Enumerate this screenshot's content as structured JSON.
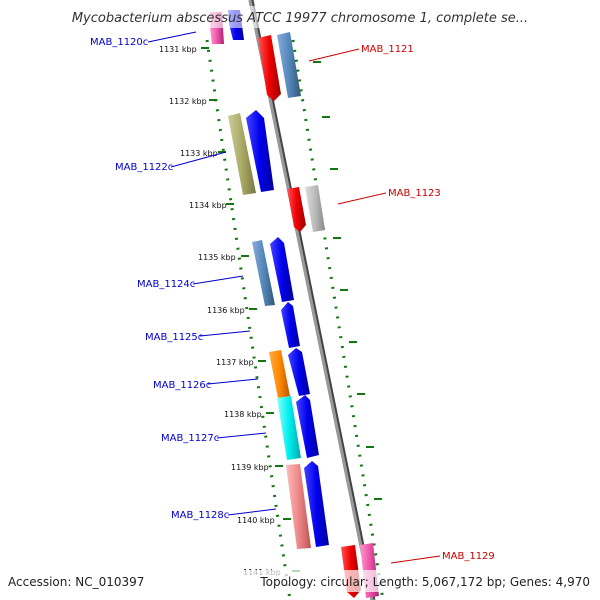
{
  "title": "Mycobacterium abscessus ATCC 19977 chromosome 1, complete se...",
  "footer": {
    "accession": "Accession: NC_010397",
    "summary": "Topology: circular; Length: 5,067,172 bp; Genes: 4,970"
  },
  "colors": {
    "forward_label": "#cc0000",
    "reverse_label": "#0000cc",
    "backbone": "#888888",
    "dotted_track": "#117711"
  },
  "ticks": [
    "1131 kbp",
    "1132 kbp",
    "1133 kbp",
    "1134 kbp",
    "1135 kbp",
    "1136 kbp",
    "1137 kbp",
    "1138 kbp",
    "1139 kbp",
    "1140 kbp",
    "1141 kbp"
  ],
  "genes": [
    {
      "label": "MAB_1120c",
      "strand": "reverse"
    },
    {
      "label": "MAB_1121",
      "strand": "forward"
    },
    {
      "label": "MAB_1122c",
      "strand": "reverse"
    },
    {
      "label": "MAB_1123",
      "strand": "forward"
    },
    {
      "label": "MAB_1124c",
      "strand": "reverse"
    },
    {
      "label": "MAB_1125c",
      "strand": "reverse"
    },
    {
      "label": "MAB_1126c",
      "strand": "reverse"
    },
    {
      "label": "MAB_1127c",
      "strand": "reverse"
    },
    {
      "label": "MAB_1128c",
      "strand": "reverse"
    },
    {
      "label": "MAB_1129",
      "strand": "forward"
    }
  ],
  "feature_colors": {
    "cog_magenta": "#ee55aa",
    "cog_steelblue": "#5588bb",
    "cog_red": "#ee0000",
    "cog_olive": "#aaaa66",
    "cog_gray": "#bbbbbb",
    "cog_orange": "#ff8800",
    "cog_cyan": "#00eeee",
    "cog_pink": "#ee8888",
    "cds_blue": "#0000ee"
  }
}
